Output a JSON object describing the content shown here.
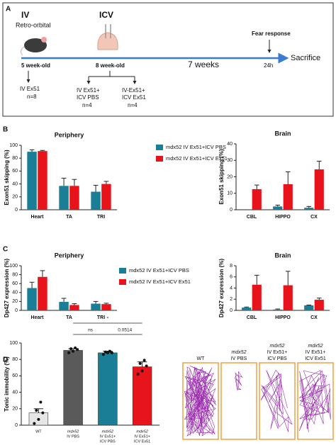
{
  "panel_a": {
    "label": "A",
    "iv": "IV",
    "retro": "Retro-orbital",
    "icv": "ICV",
    "fear": "Fear response",
    "sacrifice": "Sacrifice",
    "age1": "5 week-old",
    "age2": "8 week-old",
    "weeks": "7  weeks",
    "h24": "24h",
    "g1": [
      "IV Ex51",
      "n=8"
    ],
    "g2": [
      "IV Ex51+",
      "ICV PBS",
      "n=4"
    ],
    "g3": [
      "IV-Ex51+",
      "ICV Ex51",
      "n=4"
    ]
  },
  "panel_labels": [
    "B",
    "C",
    "D"
  ],
  "chart_data": [
    {
      "type": "bar",
      "title": "Periphery",
      "y_label": "Exon51 skipping (%)",
      "categories": [
        "Heart",
        "TA",
        "TRI"
      ],
      "series": [
        {
          "name": "mdx52 IV Ex51+ICV PBS",
          "color": "#1a7f96",
          "values": [
            90,
            37,
            28
          ],
          "errors": [
            3,
            12,
            10
          ]
        },
        {
          "name": "mdx52 IV Ex51+ICV Ex51",
          "color": "#e8141b",
          "values": [
            91,
            37,
            40
          ],
          "errors": [
            1,
            10,
            4
          ]
        }
      ],
      "ylim": [
        0,
        100
      ],
      "yticks": [
        0,
        20,
        40,
        60,
        80,
        100
      ]
    },
    {
      "type": "bar",
      "title": "Brain",
      "y_label": "Exon51 skipping (%)",
      "categories": [
        "CBL",
        "HIPPO",
        "CX"
      ],
      "series": [
        {
          "color": "#1a7f96",
          "values": [
            0,
            2,
            1.2
          ],
          "errors": [
            0,
            0.8,
            0.8
          ]
        },
        {
          "color": "#e8141b",
          "values": [
            12.5,
            15.5,
            24.5
          ],
          "errors": [
            2.5,
            7.5,
            5
          ]
        }
      ],
      "ylim": [
        0,
        40
      ],
      "yticks": [
        0,
        10,
        20,
        30,
        40
      ]
    },
    {
      "type": "bar",
      "title": "Periphery",
      "y_label": "Dp427 expression (%)",
      "categories": [
        "Heart",
        "TA",
        "TRI"
      ],
      "series": [
        {
          "name": "mdx52 IV Ex51+ICV PBS",
          "color": "#1a7f96",
          "values": [
            50,
            19,
            15
          ],
          "errors": [
            13,
            8,
            5
          ]
        },
        {
          "name": "mdx52 IV Ex51+ICV Ex51",
          "color": "#e8141b",
          "values": [
            75,
            12,
            14
          ],
          "errors": [
            14,
            3,
            2
          ]
        }
      ],
      "ylim": [
        0,
        100
      ],
      "yticks": [
        0,
        20,
        40,
        60,
        80,
        100
      ]
    },
    {
      "type": "bar",
      "title": "Brain",
      "y_label": "Dp427 expression (%)",
      "categories": [
        "CBL",
        "HIPPO",
        "CX"
      ],
      "series": [
        {
          "color": "#1a7f96",
          "values": [
            0.5,
            0.15,
            0.9
          ],
          "errors": [
            0.1,
            0.1,
            0.05
          ]
        },
        {
          "color": "#e8141b",
          "values": [
            4.6,
            4.5,
            1.9
          ],
          "errors": [
            1.7,
            2.5,
            0.3
          ]
        }
      ],
      "ylim": [
        0,
        8
      ],
      "yticks": [
        0,
        2,
        4,
        6,
        8
      ]
    },
    {
      "type": "bar",
      "y_label": "Tonic immobility (%)",
      "categories": [
        [
          "WT"
        ],
        [
          "mdx52",
          "IV PBS"
        ],
        [
          "mdx52",
          "IV Ex51+",
          "ICV PBS"
        ],
        [
          "mdx52",
          "IV Ex51+",
          "ICV Ex51"
        ]
      ],
      "values": [
        15,
        91,
        88,
        71
      ],
      "errors": [
        5,
        2,
        2,
        6
      ],
      "colors": [
        "#e6e6e6",
        "#5a5a5a",
        "#1a7f96",
        "#e8141b"
      ],
      "points": [
        [
          2,
          7,
          15,
          18,
          28
        ],
        [
          88,
          90,
          92,
          93,
          94
        ],
        [
          86,
          88,
          88,
          89,
          90
        ],
        [
          62,
          66,
          72,
          75,
          79
        ]
      ],
      "annotations": [
        {
          "text": "ns",
          "from": 1,
          "to": 2
        },
        {
          "text": "0.0514",
          "from": 2,
          "to": 3
        },
        {
          "text": "*",
          "from": 1,
          "to": 3
        }
      ],
      "ylim": [
        0,
        100
      ],
      "yticks": [
        0,
        20,
        40,
        60,
        80,
        100
      ]
    }
  ],
  "panel_d_tracks": {
    "labels": [
      [
        "WT"
      ],
      [
        "mdx52",
        "IV PBS"
      ],
      [
        "mdx52",
        "IV Ex51+",
        "ICV PBS"
      ],
      [
        "mdx52",
        "IV Ex51+",
        "ICV Ex51"
      ]
    ]
  }
}
